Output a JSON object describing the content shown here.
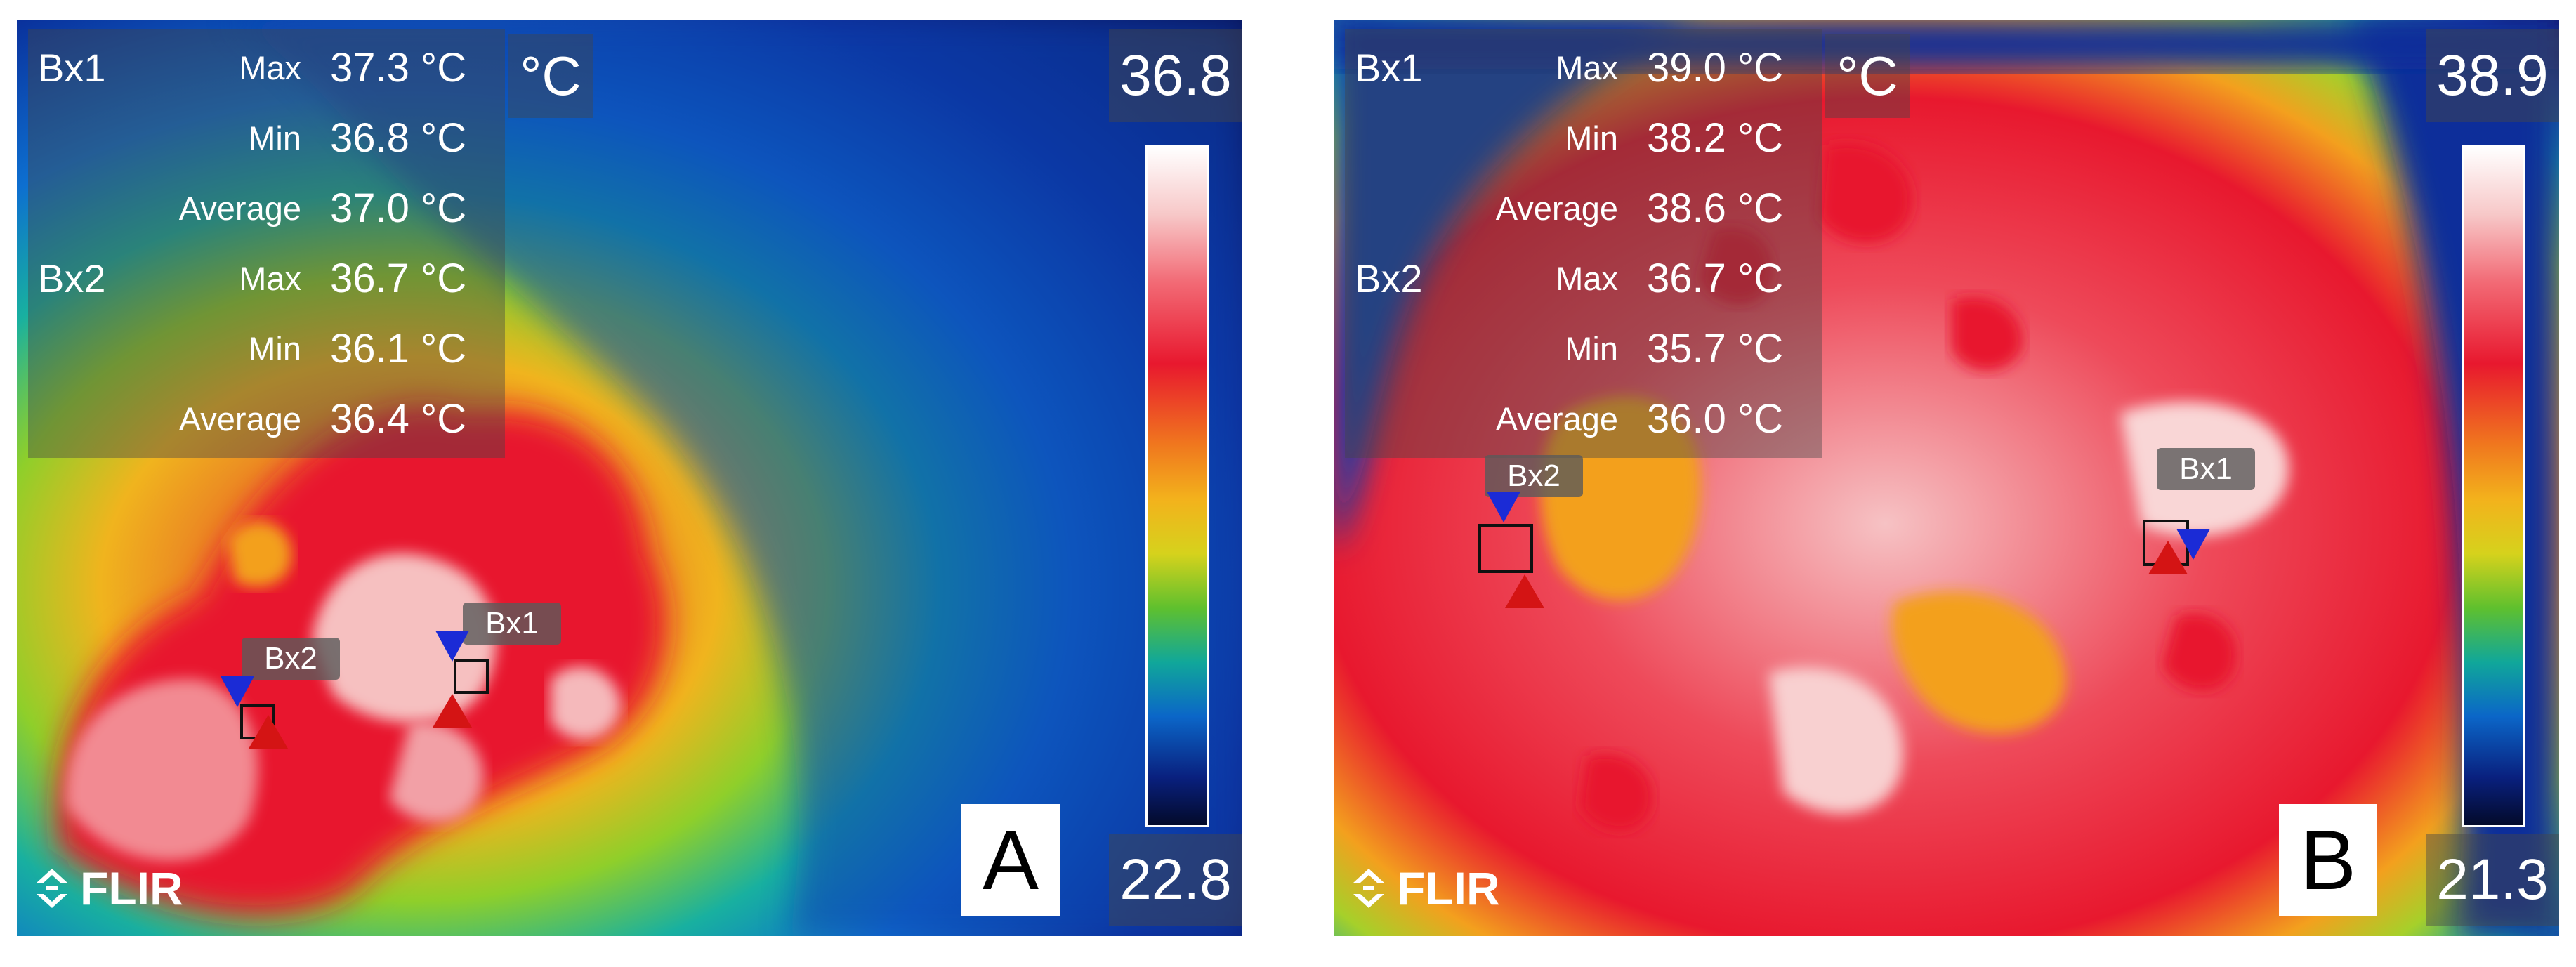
{
  "panels": [
    {
      "letter": "A",
      "unit": "°C",
      "scale_max": "36.8",
      "scale_min": "22.8",
      "brand": "FLIR",
      "readout": [
        {
          "box": "Bx1",
          "stat": "Max",
          "value": "37.3 °C"
        },
        {
          "box": "",
          "stat": "Min",
          "value": "36.8 °C"
        },
        {
          "box": "",
          "stat": "Average",
          "value": "37.0 °C"
        },
        {
          "box": "Bx2",
          "stat": "Max",
          "value": "36.7 °C"
        },
        {
          "box": "",
          "stat": "Min",
          "value": "36.1 °C"
        },
        {
          "box": "",
          "stat": "Average",
          "value": "36.4 °C"
        }
      ],
      "markers": {
        "bx1": "Bx1",
        "bx2": "Bx2"
      }
    },
    {
      "letter": "B",
      "unit": "°C",
      "scale_max": "38.9",
      "scale_min": "21.3",
      "brand": "FLIR",
      "readout": [
        {
          "box": "Bx1",
          "stat": "Max",
          "value": "39.0 °C"
        },
        {
          "box": "",
          "stat": "Min",
          "value": "38.2 °C"
        },
        {
          "box": "",
          "stat": "Average",
          "value": "38.6 °C"
        },
        {
          "box": "Bx2",
          "stat": "Max",
          "value": "36.7 °C"
        },
        {
          "box": "",
          "stat": "Min",
          "value": "35.7 °C"
        },
        {
          "box": "",
          "stat": "Average",
          "value": "36.0 °C"
        }
      ],
      "markers": {
        "bx1": "Bx1",
        "bx2": "Bx2"
      }
    }
  ]
}
